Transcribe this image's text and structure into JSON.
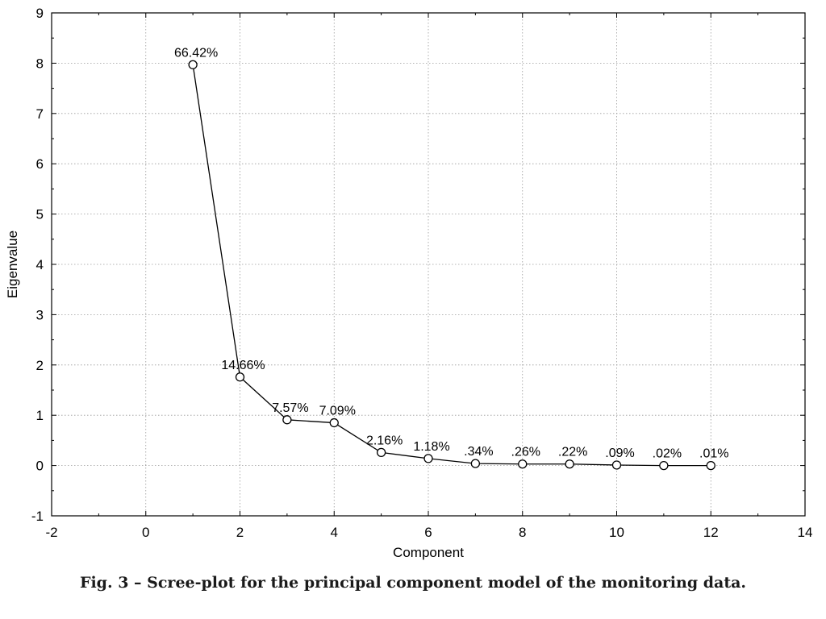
{
  "chart_data": {
    "type": "line",
    "xlabel": "Component",
    "ylabel": "Eigenvalue",
    "xlim": [
      -2,
      14
    ],
    "ylim": [
      -1,
      9
    ],
    "xticks": [
      -2,
      0,
      2,
      4,
      6,
      8,
      10,
      12,
      14
    ],
    "yticks": [
      -1,
      0,
      1,
      2,
      3,
      4,
      5,
      6,
      7,
      8,
      9
    ],
    "grid": true,
    "markers": "open-circle",
    "series": [
      {
        "x": [
          1,
          2,
          3,
          4,
          5,
          6,
          7,
          8,
          9,
          10,
          11,
          12
        ],
        "y": [
          7.97,
          1.76,
          0.91,
          0.85,
          0.26,
          0.14,
          0.04,
          0.03,
          0.03,
          0.01,
          0.0,
          0.0
        ],
        "labels": [
          "66.42%",
          "14.66%",
          "7.57%",
          "7.09%",
          "2.16%",
          "1.18%",
          ".34%",
          ".26%",
          ".22%",
          ".09%",
          ".02%",
          ".01%"
        ]
      }
    ]
  },
  "caption": "Fig. 3 – Scree-plot for the principal component model of the monitoring data.",
  "colors": {
    "line": "#000000",
    "marker_fill": "#ffffff",
    "grid": "#9a9a9a"
  }
}
